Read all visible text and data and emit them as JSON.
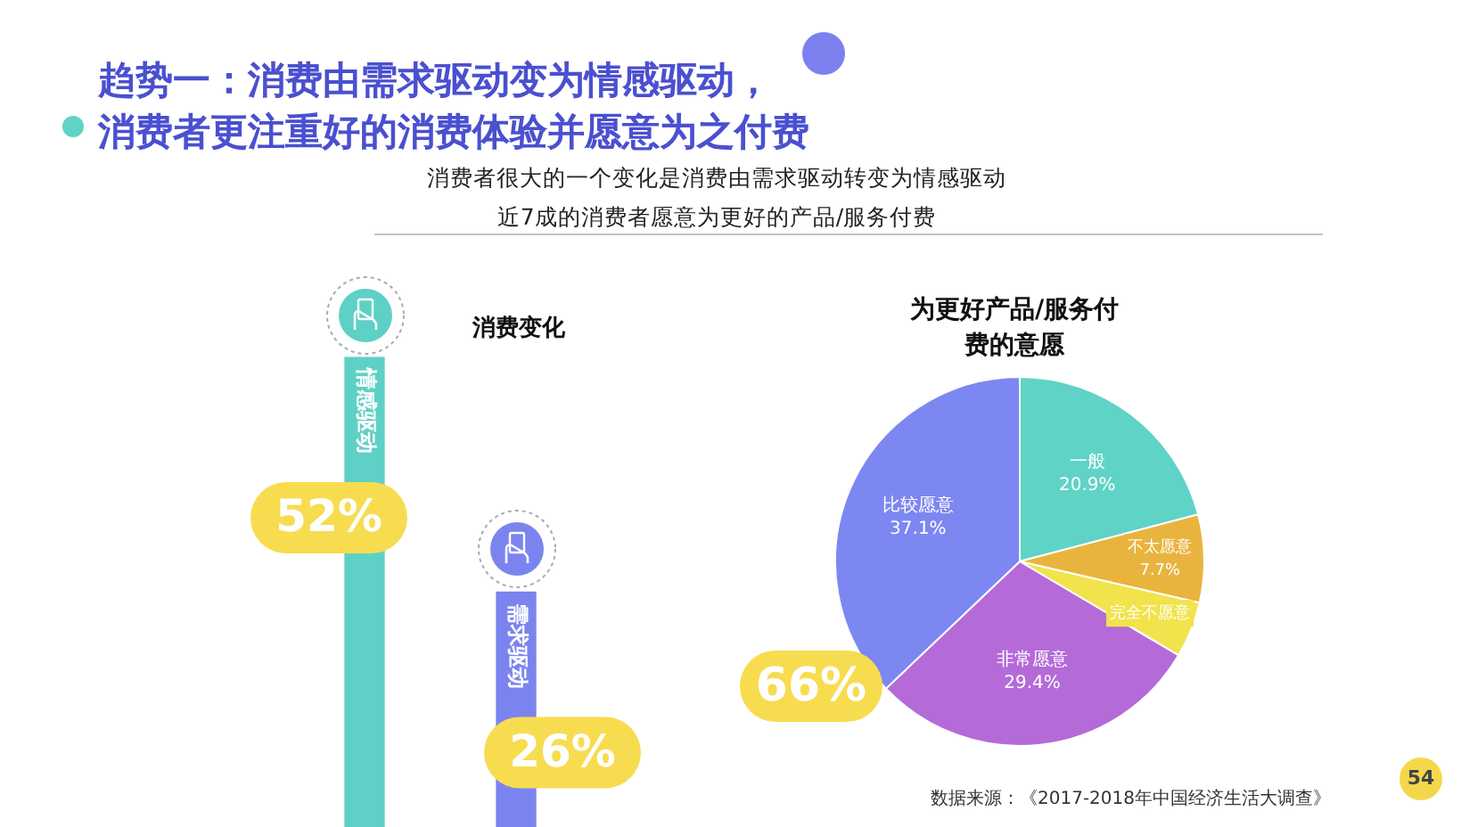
{
  "chart_data": [
    {
      "type": "other",
      "title": "趋势一：消费由需求驱动变为情感驱动，消费者更注重好的消费体验并愿意为之付费",
      "subtitle": "消费者很大的一个变化是消费由需求驱动转变为情感驱动",
      "annotations": [
        "近7成的消费者愿意为更好的产品/服务付费",
        "数据来源：《2017-2018年中国经济生活大调查》",
        "54"
      ]
    },
    {
      "type": "bar",
      "title": "消费变化",
      "categories": [
        "情感驱动",
        "需求驱动"
      ],
      "values": [
        52,
        26
      ],
      "colors": [
        "#5fd0c5",
        "#7b84ee"
      ],
      "value_labels": [
        "52%",
        "26%"
      ]
    },
    {
      "type": "pie",
      "title": "为更好产品/服务付费的意愿",
      "categories": [
        "一般",
        "不太愿意",
        "完全不愿意",
        "非常愿意",
        "比较愿意"
      ],
      "values": [
        20.9,
        7.7,
        4.9,
        29.4,
        37.1
      ],
      "colors": [
        "#5fd3c6",
        "#e9b43e",
        "#f1e34c",
        "#b46bd8",
        "#7d87f1"
      ],
      "value_labels": [
        "20.9%",
        "7.7%",
        null,
        "29.4%",
        "37.1%"
      ],
      "annotations": [
        "66%"
      ]
    }
  ]
}
